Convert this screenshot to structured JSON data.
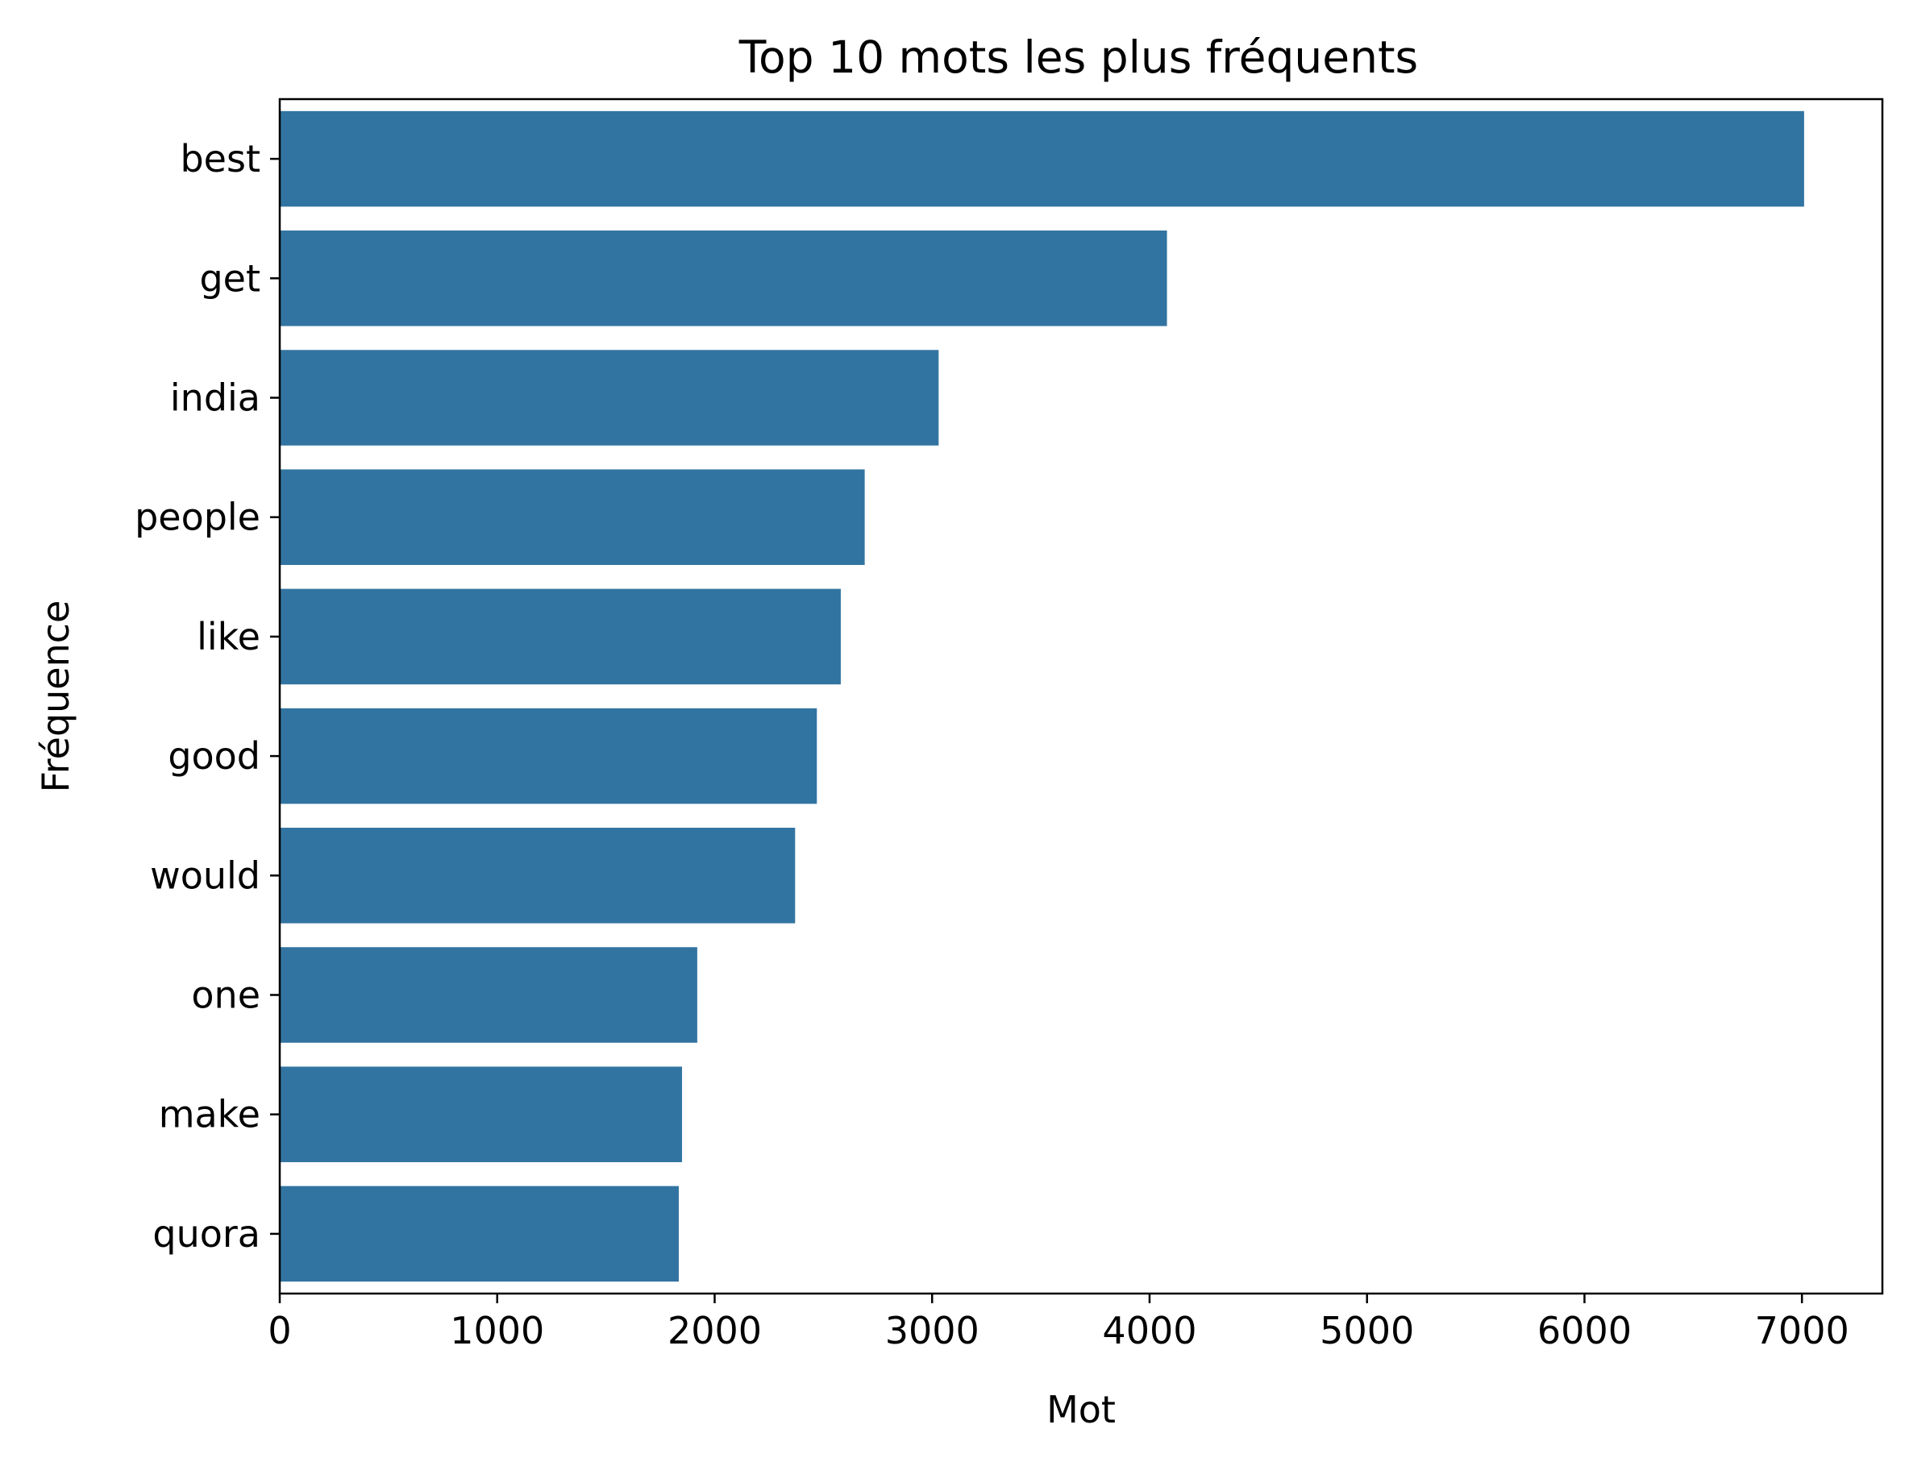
{
  "chart_data": {
    "type": "bar",
    "orientation": "horizontal",
    "title": "Top 10 mots les plus fréquents",
    "xlabel": "Mot",
    "ylabel": "Fréquence",
    "categories": [
      "best",
      "get",
      "india",
      "people",
      "like",
      "good",
      "would",
      "one",
      "make",
      "quora"
    ],
    "values": [
      7010,
      4080,
      3030,
      2690,
      2580,
      2470,
      2370,
      1920,
      1850,
      1835
    ],
    "xlim": [
      0,
      7370
    ],
    "xticks": [
      0,
      1000,
      2000,
      3000,
      4000,
      5000,
      6000,
      7000
    ],
    "xtick_labels": [
      "0",
      "1000",
      "2000",
      "3000",
      "4000",
      "5000",
      "6000",
      "7000"
    ],
    "bar_color": "#3274a1",
    "grid": false,
    "legend": "none"
  }
}
